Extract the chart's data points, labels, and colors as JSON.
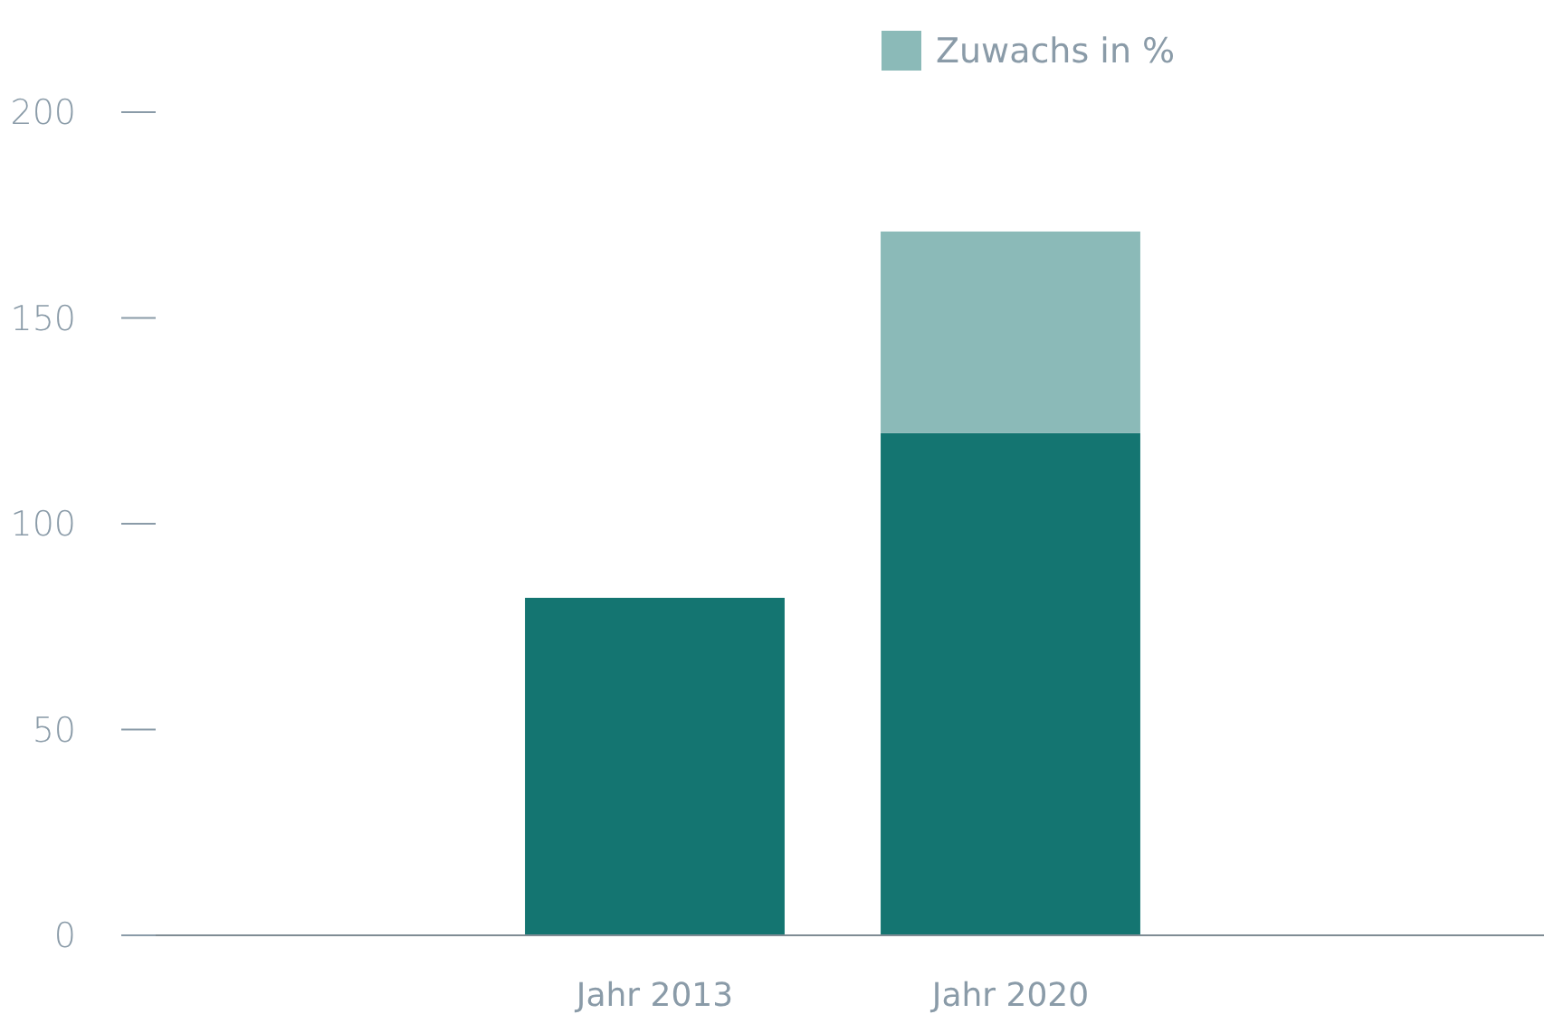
{
  "chart_data": {
    "type": "bar",
    "stacked": true,
    "categories": [
      null,
      "Jahr 2013",
      "Jahr 2020",
      null
    ],
    "series": [
      {
        "color": "#147571",
        "values": [
          null,
          82,
          122,
          null
        ]
      },
      {
        "name": "Zuwachs in %",
        "color": "#8bbab8",
        "values": [
          null,
          null,
          49,
          null
        ]
      }
    ],
    "ylim": [
      0,
      200
    ],
    "yticks": [
      0,
      50,
      100,
      150,
      200
    ],
    "grid": false,
    "legend": "top"
  }
}
